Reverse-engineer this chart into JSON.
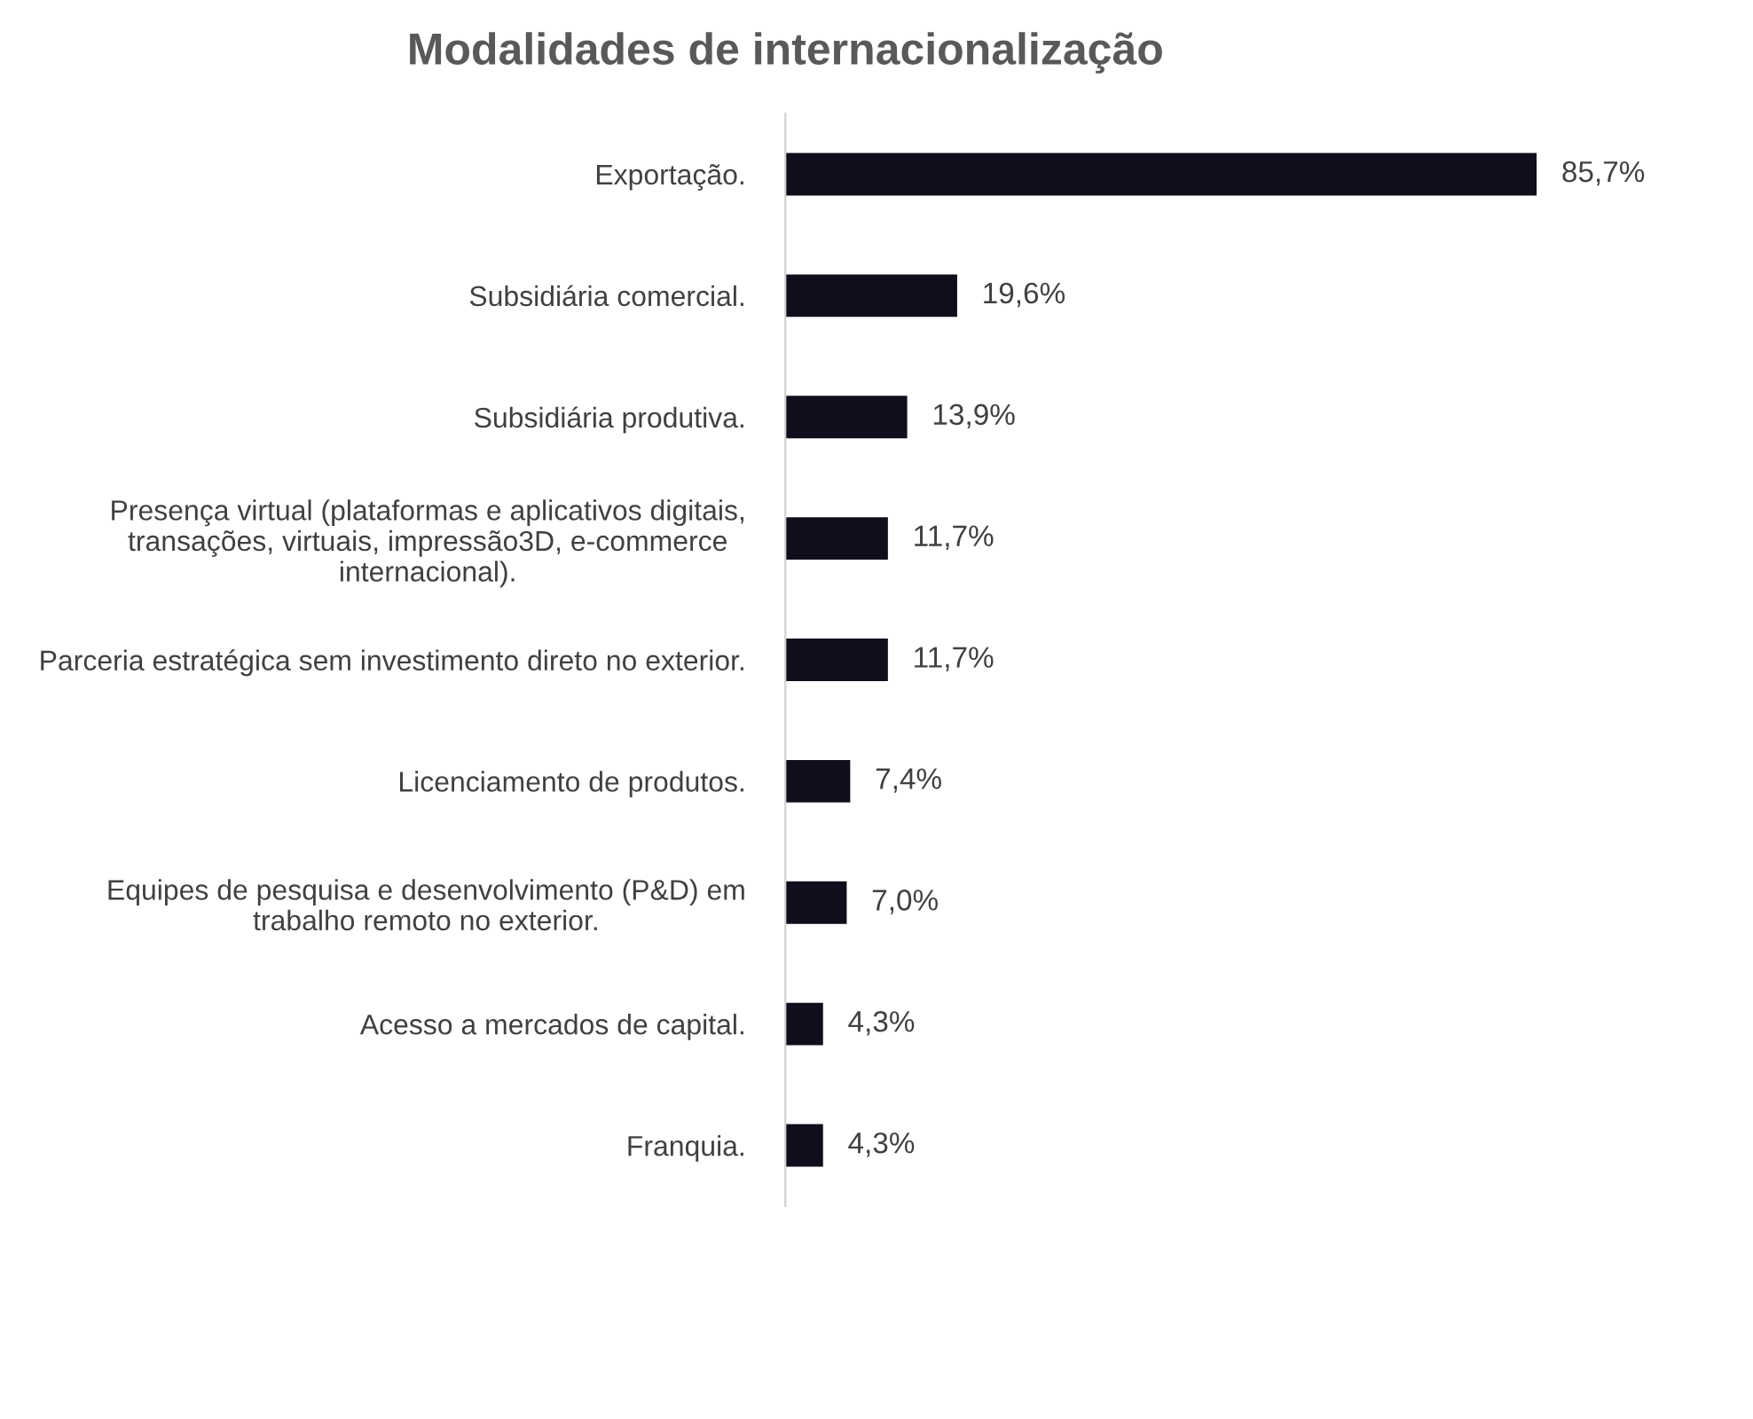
{
  "chart_data": {
    "type": "bar",
    "orientation": "horizontal",
    "title": "Modalidades de internacionalização",
    "categories": [
      "Exportação.",
      "Subsidiária comercial.",
      "Subsidiária produtiva.",
      "Presença virtual (plataformas e aplicativos digitais,\ntransações, virtuais, impressão3D, e-commerce\ninternacional).",
      "Parceria estratégica sem investimento direto no exterior.",
      "Licenciamento de produtos.",
      "Equipes de pesquisa e desenvolvimento (P&D) em\ntrabalho remoto no exterior.",
      "Acesso a mercados de capital.",
      "Franquia."
    ],
    "values": [
      85.7,
      19.6,
      13.9,
      11.7,
      11.7,
      7.4,
      7.0,
      4.3,
      4.3
    ],
    "value_labels": [
      "85,7%",
      "19,6%",
      "13,9%",
      "11,7%",
      "11,7%",
      "7,4%",
      "7,0%",
      "4,3%",
      "4,3%"
    ],
    "color": "#0e0e1c",
    "grid": false,
    "legend": false
  }
}
